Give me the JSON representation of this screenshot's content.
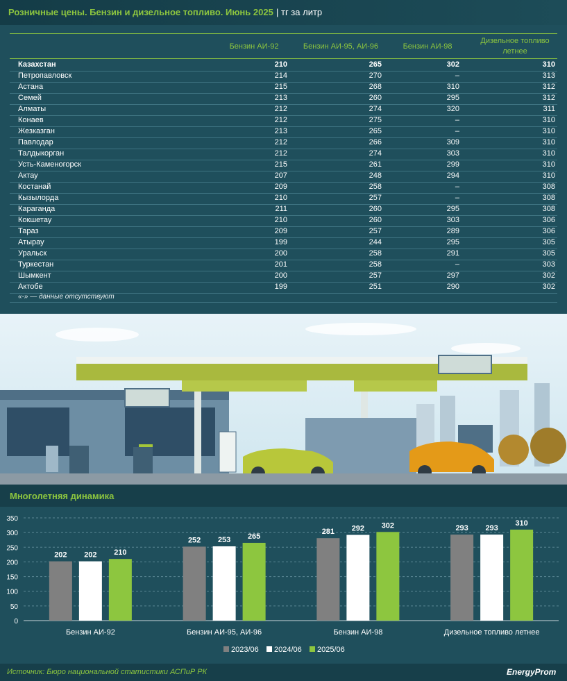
{
  "header": {
    "title": "Розничные цены. Бензин и дизельное топливо. Июнь 2025",
    "unit": "тг за литр"
  },
  "table": {
    "columns": [
      "Бензин АИ-92",
      "Бензин АИ-95, АИ-96",
      "Бензин АИ-98",
      "Дизельное топливо летнее"
    ],
    "rows": [
      {
        "city": "Казахстан",
        "v": [
          "210",
          "265",
          "302",
          "310"
        ]
      },
      {
        "city": "Петропавловск",
        "v": [
          "214",
          "270",
          "–",
          "313"
        ]
      },
      {
        "city": "Астана",
        "v": [
          "215",
          "268",
          "310",
          "312"
        ]
      },
      {
        "city": "Семей",
        "v": [
          "213",
          "260",
          "295",
          "312"
        ]
      },
      {
        "city": "Алматы",
        "v": [
          "212",
          "274",
          "320",
          "311"
        ]
      },
      {
        "city": "Конаев",
        "v": [
          "212",
          "275",
          "–",
          "310"
        ]
      },
      {
        "city": "Жезказган",
        "v": [
          "213",
          "265",
          "–",
          "310"
        ]
      },
      {
        "city": "Павлодар",
        "v": [
          "212",
          "266",
          "309",
          "310"
        ]
      },
      {
        "city": "Талдыкорган",
        "v": [
          "212",
          "274",
          "303",
          "310"
        ]
      },
      {
        "city": "Усть-Каменогорск",
        "v": [
          "215",
          "261",
          "299",
          "310"
        ]
      },
      {
        "city": "Актау",
        "v": [
          "207",
          "248",
          "294",
          "310"
        ]
      },
      {
        "city": "Костанай",
        "v": [
          "209",
          "258",
          "–",
          "308"
        ]
      },
      {
        "city": "Кызылорда",
        "v": [
          "210",
          "257",
          "–",
          "308"
        ]
      },
      {
        "city": "Караганда",
        "v": [
          "211",
          "260",
          "295",
          "308"
        ]
      },
      {
        "city": "Кокшетау",
        "v": [
          "210",
          "260",
          "303",
          "306"
        ]
      },
      {
        "city": "Тараз",
        "v": [
          "209",
          "257",
          "289",
          "306"
        ]
      },
      {
        "city": "Атырау",
        "v": [
          "199",
          "244",
          "295",
          "305"
        ]
      },
      {
        "city": "Уральск",
        "v": [
          "200",
          "258",
          "291",
          "305"
        ]
      },
      {
        "city": "Туркестан",
        "v": [
          "201",
          "258",
          "–",
          "303"
        ]
      },
      {
        "city": "Шымкент",
        "v": [
          "200",
          "257",
          "297",
          "302"
        ]
      },
      {
        "city": "Актобе",
        "v": [
          "199",
          "251",
          "290",
          "302"
        ]
      }
    ],
    "footnote": "«-» — данные отсутствуют"
  },
  "dynamics": {
    "title": "Многолетняя динамика"
  },
  "chart_data": {
    "type": "bar",
    "categories": [
      "Бензин АИ-92",
      "Бензин АИ-95, АИ-96",
      "Бензин АИ-98",
      "Дизельное топливо летнее"
    ],
    "series": [
      {
        "name": "2023/06",
        "color": "#808080",
        "values": [
          202,
          252,
          281,
          293
        ]
      },
      {
        "name": "2024/06",
        "color": "#ffffff",
        "values": [
          202,
          253,
          292,
          293
        ]
      },
      {
        "name": "2025/06",
        "color": "#8dc63f",
        "values": [
          210,
          265,
          302,
          310
        ]
      }
    ],
    "ylim": [
      0,
      350
    ],
    "yticks": [
      0,
      50,
      100,
      150,
      200,
      250,
      300,
      350
    ],
    "grid": true,
    "legend_position": "bottom"
  },
  "footer": {
    "source": "Источник: Бюро национальной статистики АСПиР РК",
    "brand": "EnergyProm"
  }
}
